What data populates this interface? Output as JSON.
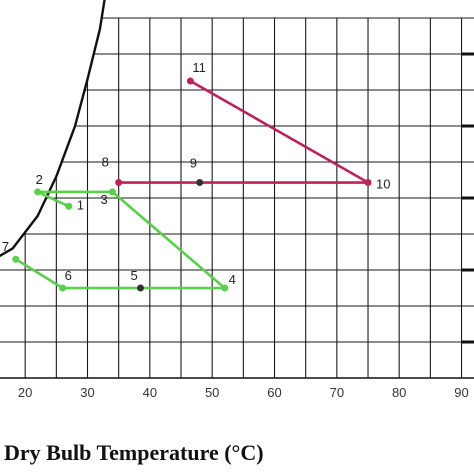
{
  "chart_data": {
    "type": "line",
    "xlabel": "Dry Bulb Temperature (°C)",
    "x_ticks": [
      20,
      30,
      40,
      50,
      60,
      70,
      80,
      90
    ],
    "xlim": [
      15,
      92
    ],
    "ylim": [
      0,
      10
    ],
    "grid": true,
    "colors": {
      "green": "#55d246",
      "red": "#c2205a",
      "grid": "#1a1a1a"
    },
    "saturation_curve": [
      [
        15,
        3.3
      ],
      [
        18,
        3.6
      ],
      [
        22,
        4.5
      ],
      [
        25,
        5.6
      ],
      [
        28,
        7.0
      ],
      [
        30,
        8.3
      ],
      [
        32,
        9.7
      ],
      [
        33,
        10.8
      ]
    ],
    "points": [
      {
        "label": "1",
        "x": 27,
        "y": 4.77
      },
      {
        "label": "2",
        "x": 22,
        "y": 5.17
      },
      {
        "label": "3",
        "x": 34,
        "y": 5.17
      },
      {
        "label": "4",
        "x": 52,
        "y": 2.5
      },
      {
        "label": "5",
        "x": 38.5,
        "y": 2.5
      },
      {
        "label": "6",
        "x": 26,
        "y": 2.5
      },
      {
        "label": "7",
        "x": 18.5,
        "y": 3.3
      },
      {
        "label": "8",
        "x": 35,
        "y": 5.43
      },
      {
        "label": "9",
        "x": 48,
        "y": 5.43
      },
      {
        "label": "10",
        "x": 75,
        "y": 5.43
      },
      {
        "label": "11",
        "x": 46.5,
        "y": 8.25
      }
    ],
    "series": [
      {
        "color": "green",
        "points": [
          "2",
          "1"
        ]
      },
      {
        "color": "green",
        "points": [
          "2",
          "3",
          "4",
          "6",
          "7"
        ]
      },
      {
        "color": "red",
        "points": [
          "8",
          "10"
        ]
      },
      {
        "color": "red",
        "points": [
          "11",
          "10"
        ]
      }
    ]
  }
}
